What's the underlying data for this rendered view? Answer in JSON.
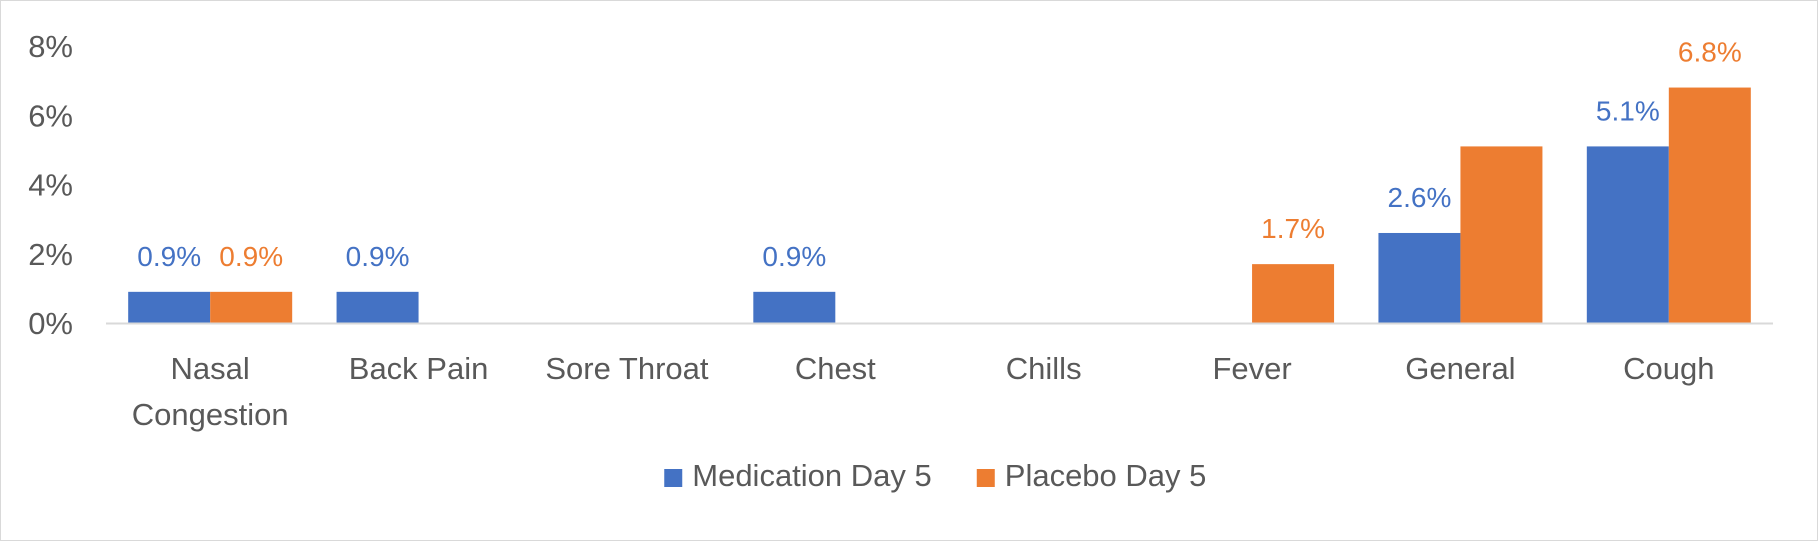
{
  "chart_data": {
    "type": "bar",
    "title": "",
    "xlabel": "",
    "ylabel": "",
    "categories": [
      [
        "Nasal",
        "Congestion"
      ],
      [
        "Back Pain"
      ],
      [
        "Sore Throat"
      ],
      [
        "Chest"
      ],
      [
        "Chills"
      ],
      [
        "Fever"
      ],
      [
        "General"
      ],
      [
        "Cough"
      ]
    ],
    "series": [
      {
        "name": "Medication Day 5",
        "color": "#4472C4",
        "values": [
          0.9,
          0.9,
          0,
          0.9,
          0,
          0,
          2.6,
          5.1
        ],
        "labels": [
          "0.9%",
          "0.9%",
          null,
          "0.9%",
          null,
          null,
          "2.6%",
          "5.1%"
        ]
      },
      {
        "name": "Placebo Day 5",
        "color": "#ED7D31",
        "values": [
          0.9,
          0,
          0,
          0,
          0,
          1.7,
          5.1,
          6.8
        ],
        "labels": [
          "0.9%",
          null,
          null,
          null,
          null,
          "1.7%",
          null,
          "6.8%"
        ]
      }
    ],
    "ylim": [
      0,
      8
    ],
    "yticks": [
      0,
      2,
      4,
      6,
      8
    ],
    "ytick_labels": [
      "0%",
      "2%",
      "4%",
      "6%",
      "8%"
    ],
    "grid": false,
    "legend_position": "bottom"
  }
}
